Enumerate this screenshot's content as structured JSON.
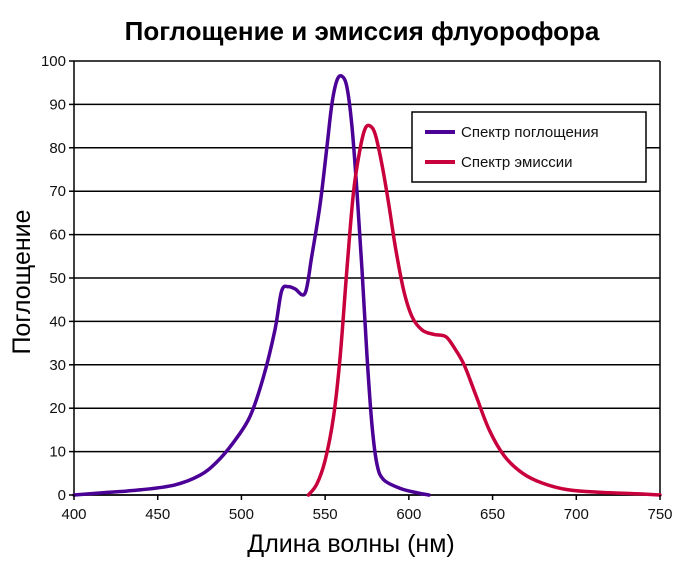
{
  "chart_data": {
    "type": "line",
    "title": "Поглощение и эмиссия флуорофора",
    "xlabel": "Длина волны (нм)",
    "ylabel": "Поглощение",
    "xlim": [
      400,
      750
    ],
    "ylim": [
      0,
      100
    ],
    "xticks": [
      "400",
      "450",
      "500",
      "550",
      "600",
      "650",
      "700",
      "750"
    ],
    "yticks": [
      "0",
      "10",
      "20",
      "30",
      "40",
      "50",
      "60",
      "70",
      "80",
      "90",
      "100"
    ],
    "grid": "horizontal",
    "legend_position": "top-right",
    "series": [
      {
        "name": "Спектр поглощения",
        "color": "#4b0096",
        "points": [
          [
            400,
            0
          ],
          [
            420,
            0.6
          ],
          [
            440,
            1.2
          ],
          [
            460,
            2.3
          ],
          [
            475,
            4.5
          ],
          [
            485,
            7.5
          ],
          [
            495,
            12
          ],
          [
            505,
            18
          ],
          [
            513,
            27
          ],
          [
            520,
            38
          ],
          [
            524,
            47
          ],
          [
            528,
            48
          ],
          [
            532,
            47.5
          ],
          [
            538,
            46.5
          ],
          [
            542,
            55
          ],
          [
            547,
            67
          ],
          [
            551,
            80
          ],
          [
            554,
            90
          ],
          [
            557,
            95.5
          ],
          [
            560,
            96.5
          ],
          [
            563,
            94
          ],
          [
            566,
            85
          ],
          [
            569,
            70
          ],
          [
            572,
            52
          ],
          [
            575,
            32
          ],
          [
            578,
            16
          ],
          [
            581,
            7
          ],
          [
            585,
            3.5
          ],
          [
            595,
            1.5
          ],
          [
            605,
            0.5
          ],
          [
            612,
            0
          ]
        ]
      },
      {
        "name": "Спектр эмиссии",
        "color": "#c8003c",
        "points": [
          [
            540,
            0
          ],
          [
            545,
            2.5
          ],
          [
            550,
            8
          ],
          [
            555,
            18
          ],
          [
            559,
            32
          ],
          [
            563,
            52
          ],
          [
            567,
            70
          ],
          [
            571,
            80
          ],
          [
            574,
            84.5
          ],
          [
            577,
            85
          ],
          [
            580,
            83
          ],
          [
            584,
            76
          ],
          [
            588,
            67
          ],
          [
            592,
            57
          ],
          [
            597,
            47
          ],
          [
            602,
            41
          ],
          [
            608,
            38
          ],
          [
            615,
            37
          ],
          [
            622,
            36.5
          ],
          [
            627,
            34
          ],
          [
            633,
            30
          ],
          [
            640,
            23
          ],
          [
            648,
            15
          ],
          [
            657,
            9
          ],
          [
            668,
            5
          ],
          [
            680,
            2.7
          ],
          [
            695,
            1.2
          ],
          [
            715,
            0.6
          ],
          [
            735,
            0.3
          ],
          [
            750,
            0
          ]
        ]
      }
    ]
  }
}
